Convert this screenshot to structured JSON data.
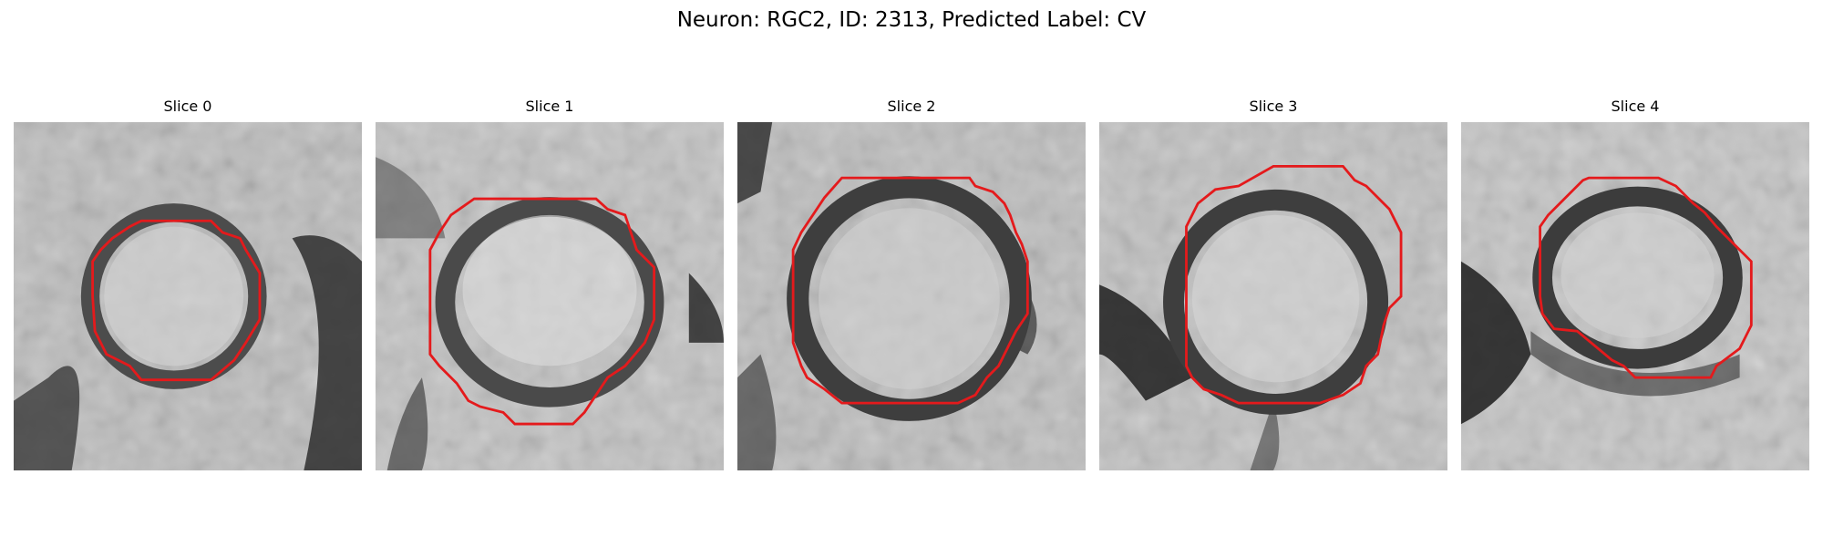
{
  "figure": {
    "title": "Neuron: RGC2, ID: 2313, Predicted Label: CV"
  },
  "panels": [
    {
      "title": "Slice 0"
    },
    {
      "title": "Slice 1"
    },
    {
      "title": "Slice 2"
    },
    {
      "title": "Slice 3"
    },
    {
      "title": "Slice 4"
    }
  ],
  "colors": {
    "contour": "#e41a1c",
    "background": "#ffffff"
  }
}
